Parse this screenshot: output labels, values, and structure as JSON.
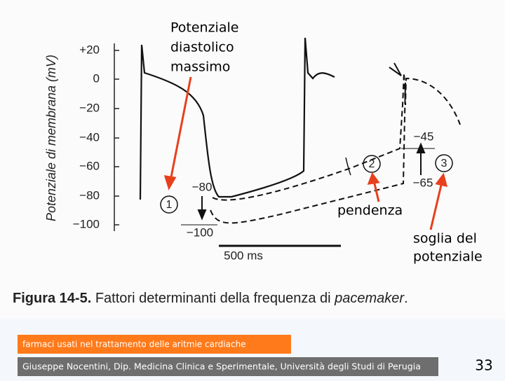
{
  "figure": {
    "y_axis_label": "Potenziale di membrana (mV)",
    "y_ticks": [
      "+20",
      "0",
      "−20",
      "−40",
      "−60",
      "−80",
      "−100"
    ],
    "annotations": [
      "−80",
      "−100",
      "−45",
      "−65"
    ],
    "markers": [
      "1",
      "2",
      "3"
    ],
    "scale_bar": "500 ms",
    "caption_label": "Figura 14-5.",
    "caption_text": "Fattori determinanti della frequenza di",
    "caption_italic": "pacemaker",
    "caption_end": "."
  },
  "callouts": {
    "diastolic": [
      "Potenziale",
      "diastolico",
      "massimo"
    ],
    "slope": "pendenza",
    "threshold": [
      "soglia del",
      "potenziale"
    ]
  },
  "footer": {
    "topic": "farmaci usati nel trattamento delle aritmie cardiache",
    "credit": "Giuseppe Nocentini, Dip. Medicina Clinica e Sperimentale, Università degli Studi di Perugia",
    "page": "33"
  }
}
